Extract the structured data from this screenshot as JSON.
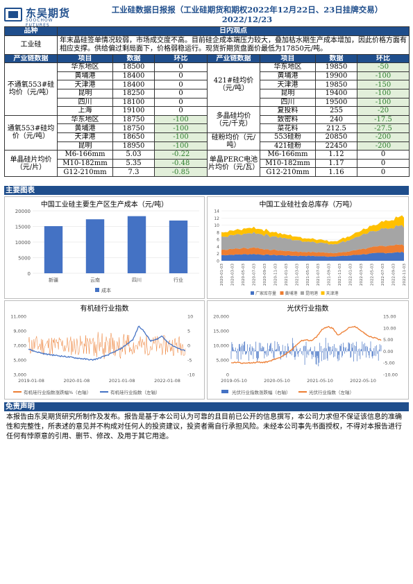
{
  "header": {
    "logo_cn": "东吴期货",
    "logo_en": "SOOCHOW FUTURES",
    "title": "工业硅数据日报报（工业硅期货和期权2022年12月22日、23日挂牌交易）",
    "date": "2022/12/23"
  },
  "view": {
    "col1": "品种",
    "col2": "日内观点",
    "product": "工业硅",
    "text": "年末晶硅签单情况较弱，市场成交度不高。目前硅企成本端压力较大，叠加枯水期生产成本增加，因此价格方面有相应支撑。供给偏过剩局面下，价格弱稳运行。现货折期货盘面价最低为17850元/吨。"
  },
  "headers": {
    "chain": "产业链数据",
    "item": "项目",
    "data": "数据",
    "change": "环比"
  },
  "left_groups": [
    {
      "label": "不通氧553#硅均价（元/吨）",
      "rows": [
        {
          "item": "华东地区",
          "value": "18500",
          "change": "0",
          "neg": false
        },
        {
          "item": "黄埔港",
          "value": "18400",
          "change": "0",
          "neg": false
        },
        {
          "item": "天津港",
          "value": "18400",
          "change": "0",
          "neg": false
        },
        {
          "item": "昆明",
          "value": "18250",
          "change": "0",
          "neg": false
        },
        {
          "item": "四川",
          "value": "18100",
          "change": "0",
          "neg": false
        },
        {
          "item": "上海",
          "value": "19100",
          "change": "0",
          "neg": false
        }
      ]
    },
    {
      "label": "通氧553#硅均价（元/吨）",
      "rows": [
        {
          "item": "华东地区",
          "value": "18750",
          "change": "-100",
          "neg": true
        },
        {
          "item": "黄埔港",
          "value": "18750",
          "change": "-100",
          "neg": true
        },
        {
          "item": "天津港",
          "value": "18650",
          "change": "-100",
          "neg": true
        },
        {
          "item": "昆明",
          "value": "18950",
          "change": "-100",
          "neg": true
        }
      ]
    },
    {
      "label": "单晶硅片均价（元/片）",
      "rows": [
        {
          "item": "M6-166mm",
          "value": "5.03",
          "change": "-0.22",
          "neg": true
        },
        {
          "item": "M10-182mm",
          "value": "5.35",
          "change": "-0.48",
          "neg": true
        },
        {
          "item": "G12-210mm",
          "value": "7.3",
          "change": "-0.85",
          "neg": true
        }
      ]
    }
  ],
  "right_groups": [
    {
      "label": "421#硅均价（元/吨）",
      "rows": [
        {
          "item": "华东地区",
          "value": "19850",
          "change": "-50",
          "neg": true
        },
        {
          "item": "黄埔港",
          "value": "19900",
          "change": "-100",
          "neg": true
        },
        {
          "item": "天津港",
          "value": "19850",
          "change": "-150",
          "neg": true
        },
        {
          "item": "昆明",
          "value": "19400",
          "change": "-100",
          "neg": true
        },
        {
          "item": "四川",
          "value": "19500",
          "change": "-100",
          "neg": true
        }
      ]
    },
    {
      "label": "多晶硅均价（元/千克）",
      "rows": [
        {
          "item": "复投料",
          "value": "255",
          "change": "-20",
          "neg": true
        },
        {
          "item": "致密料",
          "value": "240",
          "change": "-17.5",
          "neg": true
        },
        {
          "item": "菜花料",
          "value": "212.5",
          "change": "-27.5",
          "neg": true
        }
      ]
    },
    {
      "label": "硅粉均价（元/吨）",
      "rows": [
        {
          "item": "553硅粉",
          "value": "20850",
          "change": "-200",
          "neg": true
        },
        {
          "item": "421硅粉",
          "value": "22450",
          "change": "-200",
          "neg": true
        }
      ]
    },
    {
      "label": "单晶PERC电池片均价（元/瓦）",
      "rows": [
        {
          "item": "M6-166mm",
          "value": "1.12",
          "change": "0",
          "neg": false
        },
        {
          "item": "M10-182mm",
          "value": "1.17",
          "change": "0",
          "neg": false
        },
        {
          "item": "G12-210mm",
          "value": "1.16",
          "change": "0",
          "neg": false
        }
      ]
    }
  ],
  "sections": {
    "charts": "主要图表",
    "disclaimer": "免责声明"
  },
  "disclaimer_text": "本报告由东吴期货研究所制作及发布。报告是基于本公司认为可靠的且目前已公开的信息撰写，本公司力求但不保证该信息的准确性和完整性，所表述的意见并不构成对任何人的投资建议，投资者需自行承担风险。未经本公司事先书面授权，不得对本报告进行任何有悖原意的引用、删节、修改、及用于其它用途。",
  "chart_data": [
    {
      "type": "bar",
      "title": "中国工业硅主要生产区生产成本（元/吨）",
      "categories": [
        "新疆",
        "云南",
        "四川",
        "行业"
      ],
      "series": [
        {
          "name": "成本",
          "values": [
            15100,
            17300,
            18300,
            16900
          ]
        }
      ],
      "ylim": [
        0,
        20000
      ],
      "yticks": [
        0,
        5000,
        10000,
        15000,
        20000
      ],
      "color": "#4472c4",
      "legend": "bottom"
    },
    {
      "type": "area",
      "title": "中国工业硅社会总库存（万吨）",
      "ylim": [
        0,
        14
      ],
      "yticks": [
        0,
        2,
        4,
        6,
        8,
        10,
        12,
        14
      ],
      "x_ticks": [
        "2020-01-03",
        "2020-03-03",
        "2020-05-03",
        "2020-07-03",
        "2020-09-03",
        "2020-11-03",
        "2021-01-03",
        "2021-03-03",
        "2021-05-03",
        "2021-07-03",
        "2021-09-03",
        "2021-11-03",
        "2022-01-03",
        "2022-03-03",
        "2022-05-03",
        "2022-07-03",
        "2022-09-03",
        "2022-11-03"
      ],
      "series": [
        {
          "name": "广家库存量",
          "color": "#4472c4",
          "values": [
            1.6,
            1.7,
            1.8,
            1.9,
            1.7,
            1.6,
            1.5,
            1.4,
            1.4,
            1.3,
            1.2,
            1.3,
            1.5,
            1.8,
            2.0,
            2.2,
            2.3,
            2.4
          ]
        },
        {
          "name": "黄埔港",
          "color": "#ed7d31",
          "values": [
            1.5,
            1.6,
            1.7,
            1.8,
            1.6,
            1.4,
            1.3,
            1.2,
            1.1,
            1.1,
            1.0,
            1.0,
            1.2,
            1.5,
            1.7,
            1.9,
            2.0,
            2.1
          ]
        },
        {
          "name": "昆明港",
          "color": "#a5a5a5",
          "values": [
            3.5,
            3.8,
            4.0,
            4.2,
            4.1,
            3.8,
            3.5,
            3.2,
            3.0,
            2.8,
            2.5,
            2.7,
            3.3,
            3.8,
            4.3,
            4.8,
            5.0,
            5.3
          ]
        },
        {
          "name": "天津港",
          "color": "#ffc000",
          "values": [
            1.2,
            1.3,
            1.4,
            1.5,
            1.3,
            1.2,
            1.1,
            1.0,
            0.9,
            0.9,
            0.8,
            0.9,
            1.1,
            1.3,
            1.6,
            2.0,
            2.4,
            2.8
          ]
        }
      ],
      "legend": "bottom"
    },
    {
      "type": "line",
      "title": "有机硅行业指数",
      "x_ticks": [
        "2019-01-08",
        "2020-01-08",
        "2021-01-08",
        "2022-01-08"
      ],
      "ylim_left": [
        3000,
        11000
      ],
      "yticks_left": [
        "3,000",
        "5,000",
        "7,000",
        "9,000",
        "11,000"
      ],
      "ylim_right": [
        -10,
        10
      ],
      "yticks_right": [
        "-10",
        "-5",
        "0",
        "5",
        "10"
      ],
      "series": [
        {
          "name": "有机硅行业指数涨跌幅%（右轴）",
          "color": "#ed7d31",
          "axis": "right"
        },
        {
          "name": "有机硅行业指数（左轴）",
          "color": "#4472c4",
          "axis": "left",
          "values": [
            6500,
            6200,
            6000,
            5800,
            5700,
            5600,
            5500,
            5400,
            5300,
            5200,
            5100,
            5000,
            5200,
            5500,
            5800,
            6200,
            6600,
            7200,
            7800,
            9700,
            8800,
            7600,
            7800,
            8300,
            7400,
            6900,
            6500,
            6300
          ]
        }
      ],
      "legend": "bottom"
    },
    {
      "type": "line",
      "title": "光伏行业指数",
      "x_ticks": [
        "2019-05-10",
        "2020-05-10",
        "2021-05-10",
        "2022-05-10"
      ],
      "ylim_left": [
        0,
        20000
      ],
      "yticks_left": [
        "0",
        "5,000",
        "10,000",
        "15,000",
        "20,000"
      ],
      "ylim_right": [
        -10,
        15
      ],
      "yticks_right": [
        "-10.00",
        "-5.00",
        "0.00",
        "5.00",
        "10.00",
        "15.00"
      ],
      "series": [
        {
          "name": "光伏行业指数涨跌幅（右轴）",
          "color": "#4472c4",
          "axis": "right"
        },
        {
          "name": "光伏行业指数（左轴）",
          "color": "#ed7d31",
          "axis": "left",
          "values": [
            4000,
            4200,
            3900,
            4100,
            4000,
            4300,
            4100,
            4500,
            5200,
            5800,
            6800,
            8000,
            9800,
            11500,
            12000,
            11500,
            13000,
            15500,
            16500,
            15800,
            13500,
            14800,
            16000,
            16500,
            15500,
            14000,
            13000,
            12500,
            11800
          ]
        }
      ],
      "legend": "bottom"
    }
  ]
}
